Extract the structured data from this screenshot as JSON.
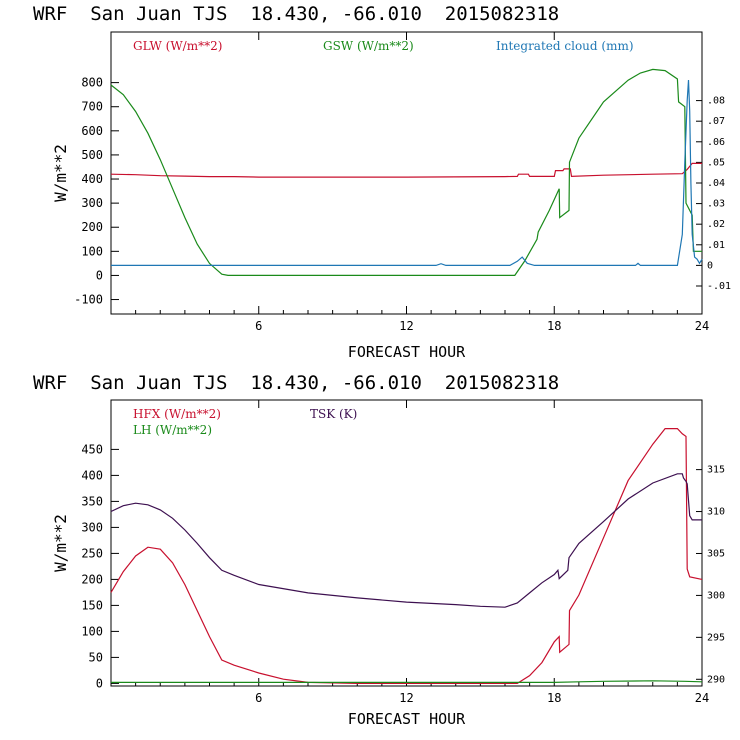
{
  "chart_data": [
    {
      "type": "line",
      "title": "WRF  San Juan TJS  18.430, -66.010  2015082318",
      "xlabel": "FORECAST HOUR",
      "ylabel": "W/m**2",
      "xlim": [
        0,
        24
      ],
      "ylim": [
        -160,
        1010
      ],
      "y2lim": [
        -0.0236,
        0.1133
      ],
      "x_ticks": [
        {
          "value": 6,
          "label": "6"
        },
        {
          "value": 12,
          "label": "12"
        },
        {
          "value": 18,
          "label": "18"
        },
        {
          "value": 24,
          "label": "24"
        }
      ],
      "y_ticks": [
        {
          "value": 800,
          "label": "800"
        },
        {
          "value": 700,
          "label": "700"
        },
        {
          "value": 600,
          "label": "600"
        },
        {
          "value": 500,
          "label": "500"
        },
        {
          "value": 400,
          "label": "400"
        },
        {
          "value": 300,
          "label": "300"
        },
        {
          "value": 200,
          "label": "200"
        },
        {
          "value": 100,
          "label": "100"
        },
        {
          "value": 0,
          "label": "0"
        },
        {
          "value": -100,
          "label": "-100"
        }
      ],
      "y2_ticks": [
        {
          "value": 0.08,
          "label": ".08"
        },
        {
          "value": 0.07,
          "label": ".07"
        },
        {
          "value": 0.06,
          "label": ".06"
        },
        {
          "value": 0.05,
          "label": ".05"
        },
        {
          "value": 0.04,
          "label": ".04"
        },
        {
          "value": 0.03,
          "label": ".03"
        },
        {
          "value": 0.02,
          "label": ".02"
        },
        {
          "value": 0.01,
          "label": ".01"
        },
        {
          "value": 0,
          "label": "0"
        },
        {
          "value": -0.01,
          "label": "-.01"
        }
      ],
      "series": [
        {
          "name": "GLW (W/m**2)",
          "color": "#c8102e",
          "axis": "left",
          "x": [
            0,
            1,
            2,
            3,
            4,
            5,
            6,
            8,
            10,
            12,
            14,
            16,
            16.5,
            16.55,
            16.95,
            17.0,
            18.0,
            18.05,
            18.35,
            18.4,
            18.65,
            18.7,
            20,
            22,
            23.2,
            23.4,
            23.6,
            24
          ],
          "y": [
            420,
            418,
            414,
            412,
            410,
            410,
            408,
            408,
            408,
            408,
            409,
            410,
            411,
            420,
            420,
            411,
            411,
            435,
            435,
            442,
            442,
            411,
            416,
            420,
            422,
            440,
            465,
            465
          ]
        },
        {
          "name": "GSW (W/m**2)",
          "color": "#1a8a1a",
          "axis": "left",
          "x": [
            0,
            0.5,
            1,
            1.5,
            2,
            2.5,
            3,
            3.5,
            4,
            4.5,
            4.75,
            5,
            16.4,
            16.8,
            17.3,
            17.35,
            17.8,
            18.2,
            18.22,
            18.6,
            18.62,
            19,
            20,
            21,
            21.5,
            22,
            22.5,
            23,
            23.05,
            23.3,
            23.35,
            23.6,
            23.65,
            24
          ],
          "y": [
            790,
            750,
            680,
            590,
            480,
            360,
            240,
            130,
            50,
            5,
            0,
            0,
            0,
            60,
            150,
            180,
            270,
            360,
            240,
            270,
            470,
            570,
            720,
            810,
            840,
            855,
            850,
            815,
            720,
            700,
            300,
            250,
            100,
            100
          ]
        },
        {
          "name": "Integrated cloud (mm)",
          "color": "#1f77b4",
          "axis": "right",
          "x": [
            0,
            13.2,
            13.4,
            13.6,
            16.2,
            16.5,
            16.7,
            16.9,
            17.2,
            21.3,
            21.4,
            21.5,
            23.0,
            23.2,
            23.3,
            23.4,
            23.45,
            23.5,
            23.55,
            23.6,
            23.7,
            23.8,
            23.9,
            24
          ],
          "y": [
            0,
            0,
            0.0008,
            0,
            0,
            0.002,
            0.004,
            0.001,
            0,
            0,
            0.001,
            0,
            0,
            0.015,
            0.05,
            0.08,
            0.09,
            0.075,
            0.04,
            0.015,
            0.004,
            0.003,
            0.001,
            0.003
          ]
        }
      ]
    },
    {
      "type": "line",
      "title": "WRF  San Juan TJS  18.430, -66.010  2015082318",
      "xlabel": "FORECAST HOUR",
      "ylabel": "W/m**2",
      "xlim": [
        0,
        24
      ],
      "ylim": [
        -5,
        545
      ],
      "y2lim": [
        289.2,
        323.3
      ],
      "x_ticks": [
        {
          "value": 6,
          "label": "6"
        },
        {
          "value": 12,
          "label": "12"
        },
        {
          "value": 18,
          "label": "18"
        },
        {
          "value": 24,
          "label": "24"
        }
      ],
      "y_ticks": [
        {
          "value": 450,
          "label": "450"
        },
        {
          "value": 400,
          "label": "400"
        },
        {
          "value": 350,
          "label": "350"
        },
        {
          "value": 300,
          "label": "300"
        },
        {
          "value": 250,
          "label": "250"
        },
        {
          "value": 200,
          "label": "200"
        },
        {
          "value": 150,
          "label": "150"
        },
        {
          "value": 100,
          "label": "100"
        },
        {
          "value": 50,
          "label": "50"
        },
        {
          "value": 0,
          "label": "0"
        }
      ],
      "y2_ticks": [
        {
          "value": 315,
          "label": "315"
        },
        {
          "value": 310,
          "label": "310"
        },
        {
          "value": 305,
          "label": "305"
        },
        {
          "value": 300,
          "label": "300"
        },
        {
          "value": 295,
          "label": "295"
        },
        {
          "value": 290,
          "label": "290"
        }
      ],
      "series": [
        {
          "name": "HFX (W/m**2)",
          "color": "#c8102e",
          "axis": "left",
          "x": [
            0,
            0.5,
            1,
            1.5,
            2,
            2.5,
            3,
            3.5,
            4,
            4.5,
            5,
            6,
            7,
            8,
            10,
            12,
            16.5,
            17,
            17.5,
            18,
            18.2,
            18.22,
            18.6,
            18.62,
            19,
            20,
            21,
            22,
            22.5,
            23,
            23.2,
            23.35,
            23.4,
            23.5,
            24
          ],
          "y": [
            175,
            215,
            245,
            262,
            258,
            232,
            190,
            140,
            90,
            45,
            35,
            20,
            8,
            2,
            0,
            0,
            0,
            15,
            40,
            80,
            90,
            60,
            75,
            140,
            170,
            280,
            390,
            460,
            490,
            490,
            480,
            475,
            220,
            205,
            200
          ]
        },
        {
          "name": "LH (W/m**2)",
          "color": "#1a8a1a",
          "axis": "left",
          "x": [
            0,
            17,
            18,
            19,
            20,
            22,
            23.3,
            24
          ],
          "y": [
            2,
            2,
            2,
            3,
            4,
            5,
            4,
            3
          ]
        },
        {
          "name": "TSK (K)",
          "color": "#3d1050",
          "axis": "right",
          "x": [
            0,
            0.5,
            1,
            1.5,
            2,
            2.5,
            3,
            3.5,
            4,
            4.5,
            5,
            6,
            8,
            10,
            12,
            14,
            15,
            16,
            16.5,
            17,
            17.5,
            18,
            18.15,
            18.2,
            18.55,
            18.6,
            19,
            20,
            21,
            22,
            23,
            23.2,
            23.25,
            23.35,
            23.4,
            23.5,
            23.6,
            24
          ],
          "y": [
            310.0,
            310.7,
            311.0,
            310.8,
            310.2,
            309.2,
            307.8,
            306.2,
            304.5,
            303.0,
            302.4,
            301.3,
            300.3,
            299.7,
            299.2,
            298.9,
            298.7,
            298.6,
            299.1,
            300.3,
            301.5,
            302.5,
            303.0,
            302.0,
            303.0,
            304.5,
            306.2,
            308.8,
            311.5,
            313.4,
            314.5,
            314.5,
            314.0,
            313.6,
            313.3,
            309.5,
            309.0,
            309.0
          ]
        }
      ]
    }
  ]
}
